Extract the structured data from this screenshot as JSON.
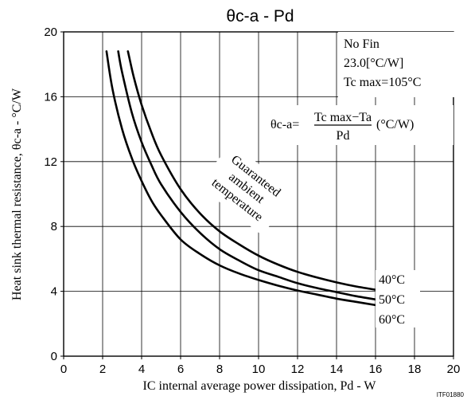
{
  "chart_data": {
    "type": "line",
    "title": "θc-a - Pd",
    "xlabel": "IC internal average power dissipation, Pd - W",
    "ylabel": "Heat sink thermal resistance, θc-a - °C/W",
    "xlim": [
      0,
      20
    ],
    "ylim": [
      0,
      20
    ],
    "x_ticks": [
      0,
      2,
      4,
      6,
      8,
      10,
      12,
      14,
      16,
      18,
      20
    ],
    "y_ticks": [
      0,
      4,
      8,
      12,
      16,
      20
    ],
    "grid": true,
    "series": [
      {
        "name": "40°C",
        "x": [
          3.3,
          3.6,
          4.0,
          4.5,
          5.0,
          6.0,
          7.0,
          8.0,
          9.0,
          10.0,
          11.0,
          12.0,
          13.0,
          14.0,
          15.0,
          16.0
        ],
        "y": [
          18.8,
          17.2,
          15.5,
          13.8,
          12.4,
          10.3,
          8.8,
          7.7,
          6.9,
          6.2,
          5.65,
          5.2,
          4.85,
          4.55,
          4.3,
          4.1
        ]
      },
      {
        "name": "50°C",
        "x": [
          2.8,
          3.0,
          3.5,
          4.0,
          4.5,
          5.0,
          6.0,
          7.0,
          8.0,
          9.0,
          10.0,
          11.0,
          12.0,
          13.0,
          14.0,
          15.0,
          16.0
        ],
        "y": [
          18.8,
          17.5,
          15.0,
          13.2,
          11.8,
          10.6,
          8.9,
          7.6,
          6.6,
          5.9,
          5.3,
          4.9,
          4.5,
          4.2,
          3.95,
          3.7,
          3.5
        ]
      },
      {
        "name": "60°C",
        "x": [
          2.2,
          2.5,
          3.0,
          3.5,
          4.0,
          4.5,
          5.0,
          6.0,
          7.0,
          8.0,
          9.0,
          10.0,
          11.0,
          12.0,
          13.0,
          14.0,
          15.0,
          16.0
        ],
        "y": [
          18.8,
          16.5,
          14.0,
          12.2,
          10.8,
          9.6,
          8.7,
          7.2,
          6.3,
          5.6,
          5.1,
          4.7,
          4.35,
          4.05,
          3.8,
          3.55,
          3.35,
          3.15
        ]
      }
    ],
    "info_box": {
      "line1": "No Fin",
      "line2": "23.0[°C/W]",
      "line3": "Tc max=105°C"
    },
    "formula": {
      "lhs": "θc-a=",
      "numerator": "Tc max−Ta",
      "denominator": "Pd",
      "unit": "(°C/W)"
    },
    "annotation": [
      "Guaranteed",
      "ambient",
      "temperature"
    ],
    "footnote": "ITF01880"
  }
}
